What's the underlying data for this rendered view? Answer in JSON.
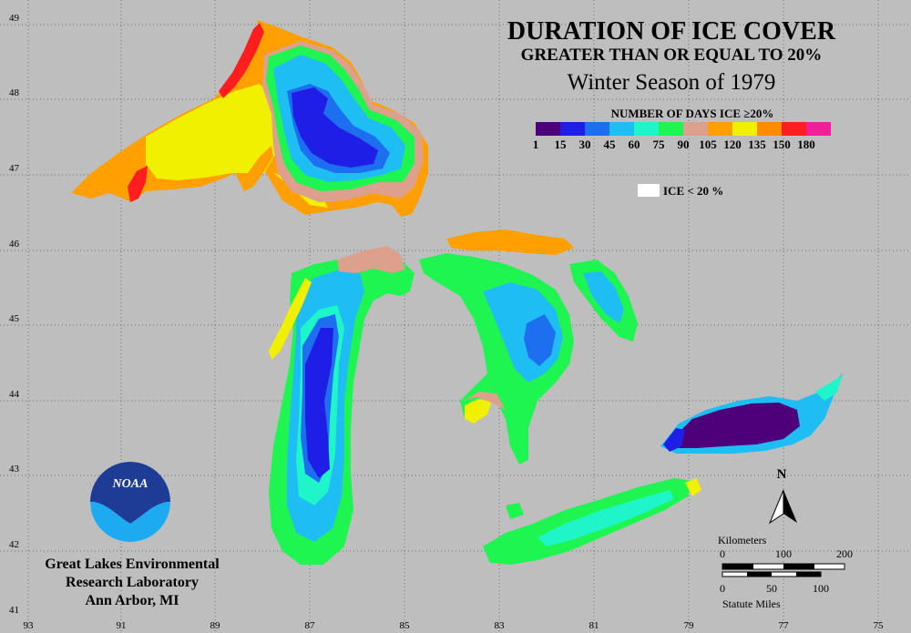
{
  "title": {
    "line1": "DURATION OF ICE COVER",
    "line2": "GREATER THAN OR EQUAL TO 20%",
    "line3": "Winter Season of 1979"
  },
  "legend": {
    "title": "NUMBER OF DAYS ICE ≥20%",
    "ticks": [
      "1",
      "15",
      "30",
      "45",
      "60",
      "75",
      "90",
      "105",
      "120",
      "135",
      "150",
      "180"
    ],
    "colors": [
      "#4d007a",
      "#1e1ee6",
      "#1e6ef0",
      "#1ebef5",
      "#1ef5c8",
      "#1ef550",
      "#dca08c",
      "#ffa000",
      "#f0f000",
      "#ff8c00",
      "#ff1e1e",
      "#f01e9b"
    ],
    "no_ice_label": "ICE < 20 %",
    "no_ice_color": "#ffffff"
  },
  "grid": {
    "lat_labels": [
      "49",
      "48",
      "47",
      "46",
      "45",
      "44",
      "43",
      "42",
      "41"
    ],
    "lon_labels": [
      "93",
      "91",
      "89",
      "87",
      "85",
      "83",
      "81",
      "79",
      "77",
      "75"
    ]
  },
  "north_arrow": {
    "label": "N"
  },
  "scale": {
    "km_title": "Kilometers",
    "km_ticks": [
      "0",
      "100",
      "200"
    ],
    "mi_ticks": [
      "0",
      "50",
      "100"
    ],
    "mi_title": "Statute Miles"
  },
  "noaa": {
    "logo_text": "NOAA",
    "line1": "Great Lakes Environmental",
    "line2": "Research Laboratory",
    "line3": "Ann Arbor, MI"
  },
  "colors": {
    "background": "#bebebe",
    "grid": "#6e6e6e",
    "text": "#000000"
  }
}
